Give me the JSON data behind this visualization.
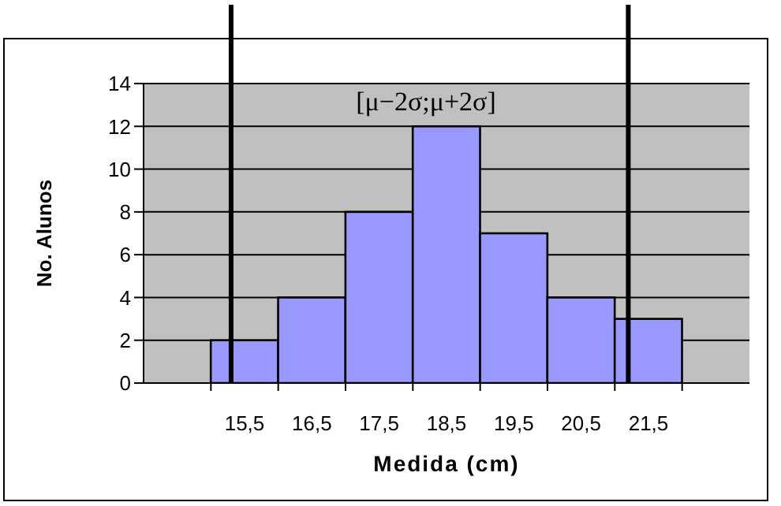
{
  "chart_data": {
    "type": "histogram",
    "bins": [
      15,
      16,
      17,
      18,
      19,
      20,
      21,
      22
    ],
    "values": [
      2,
      4,
      8,
      12,
      7,
      4,
      3
    ],
    "color": "#9999ff",
    "xlabel": "Medida (cm)",
    "ylabel": "No. Alunos",
    "xlim": [
      14,
      23
    ],
    "xticks": [
      {
        "value": 15,
        "label": null
      },
      {
        "value": 15.5,
        "label": "15,5"
      },
      {
        "value": 16,
        "label": null
      },
      {
        "value": 16.5,
        "label": "16,5"
      },
      {
        "value": 17,
        "label": null
      },
      {
        "value": 17.5,
        "label": "17,5"
      },
      {
        "value": 18,
        "label": null
      },
      {
        "value": 18.5,
        "label": "18,5"
      },
      {
        "value": 19,
        "label": null
      },
      {
        "value": 19.5,
        "label": "19,5"
      },
      {
        "value": 20,
        "label": null
      },
      {
        "value": 20.5,
        "label": "20,5"
      },
      {
        "value": 21,
        "label": null
      },
      {
        "value": 21.5,
        "label": "21,5"
      },
      {
        "value": 22,
        "label": null
      }
    ],
    "ylim": [
      0,
      14
    ],
    "yticks": [
      0,
      2,
      4,
      6,
      8,
      10,
      12,
      14
    ],
    "grid": "y",
    "ref_lines": [
      {
        "axis": "x",
        "value": 15.3,
        "color": "#000000"
      },
      {
        "axis": "x",
        "value": 21.2,
        "color": "#000000"
      }
    ],
    "annotations": [
      "[μ−2σ;μ+2σ]"
    ]
  }
}
